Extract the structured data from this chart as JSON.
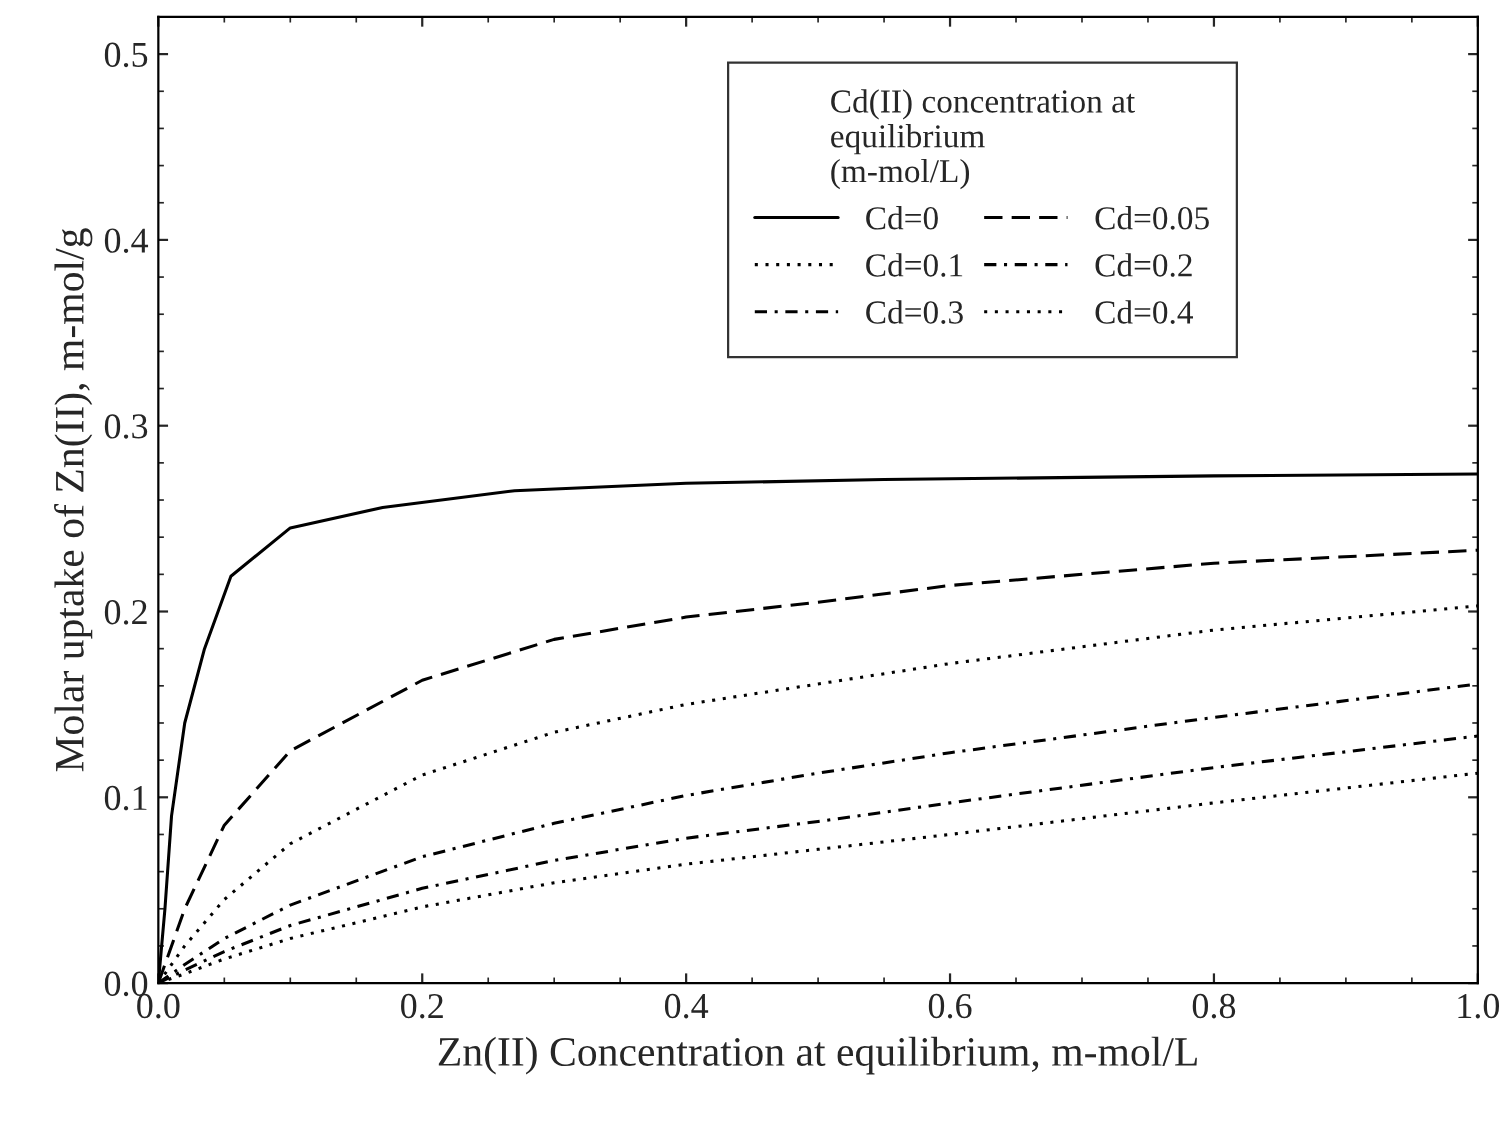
{
  "chart_data": {
    "type": "line",
    "xlabel": "Zn(II) Concentration at equilibrium, m-mol/L",
    "ylabel": "Molar uptake of Zn(II), m-mol/g",
    "legend_title": "Cd(II) concentration at\nequilibrium\n(m-mol/L)",
    "legend": "top right",
    "xlim": [
      0,
      1.0
    ],
    "ylim": [
      0,
      0.52
    ],
    "xticks": [
      {
        "value": 0,
        "label": "0.0"
      },
      {
        "value": 0.2,
        "label": "0.2"
      },
      {
        "value": 0.4,
        "label": "0.4"
      },
      {
        "value": 0.6,
        "label": "0.6"
      },
      {
        "value": 0.8,
        "label": "0.8"
      },
      {
        "value": 1.0,
        "label": "1.0"
      }
    ],
    "yticks": [
      {
        "value": 0,
        "label": "0.0"
      },
      {
        "value": 0.1,
        "label": "0.1"
      },
      {
        "value": 0.2,
        "label": "0.2"
      },
      {
        "value": 0.3,
        "label": "0.3"
      },
      {
        "value": 0.4,
        "label": "0.4"
      },
      {
        "value": 0.5,
        "label": "0.5"
      }
    ],
    "grid": false,
    "series": [
      {
        "name": "Cd=0",
        "color": "#000000",
        "line_style": "solid",
        "x": [
          0,
          0.005,
          0.01,
          0.02,
          0.035,
          0.055,
          0.1,
          0.17,
          0.27,
          0.4,
          0.55,
          0.8,
          1.0
        ],
        "values": [
          0,
          0.04,
          0.09,
          0.14,
          0.18,
          0.219,
          0.245,
          0.256,
          0.265,
          0.269,
          0.271,
          0.273,
          0.274
        ]
      },
      {
        "name": "Cd=0.05",
        "color": "#000000",
        "line_style": "dashed",
        "x": [
          0,
          0.02,
          0.05,
          0.1,
          0.2,
          0.3,
          0.4,
          0.5,
          0.6,
          0.8,
          1.0
        ],
        "values": [
          0,
          0.04,
          0.085,
          0.125,
          0.163,
          0.185,
          0.197,
          0.205,
          0.214,
          0.226,
          0.233
        ]
      },
      {
        "name": "Cd=0.1",
        "color": "#000000",
        "line_style": "dotted",
        "x": [
          0,
          0.02,
          0.05,
          0.1,
          0.2,
          0.3,
          0.4,
          0.5,
          0.6,
          0.8,
          1.0
        ],
        "values": [
          0,
          0.02,
          0.045,
          0.075,
          0.112,
          0.135,
          0.15,
          0.161,
          0.172,
          0.19,
          0.203
        ]
      },
      {
        "name": "Cd=0.2",
        "color": "#000000",
        "line_style": "dashdot",
        "x": [
          0,
          0.02,
          0.05,
          0.1,
          0.2,
          0.3,
          0.4,
          0.5,
          0.6,
          0.8,
          1.0
        ],
        "values": [
          0,
          0.01,
          0.024,
          0.042,
          0.068,
          0.086,
          0.101,
          0.113,
          0.124,
          0.143,
          0.161
        ]
      },
      {
        "name": "Cd=0.3",
        "color": "#000000",
        "line_style": "dashdot",
        "x": [
          0,
          0.02,
          0.05,
          0.1,
          0.2,
          0.3,
          0.4,
          0.5,
          0.6,
          0.8,
          1.0
        ],
        "values": [
          0,
          0.007,
          0.017,
          0.031,
          0.051,
          0.066,
          0.078,
          0.087,
          0.097,
          0.116,
          0.133
        ]
      },
      {
        "name": "Cd=0.4",
        "color": "#000000",
        "line_style": "dotted",
        "x": [
          0,
          0.02,
          0.05,
          0.1,
          0.2,
          0.3,
          0.4,
          0.5,
          0.6,
          0.8,
          1.0
        ],
        "values": [
          0,
          0.005,
          0.013,
          0.024,
          0.041,
          0.054,
          0.064,
          0.072,
          0.08,
          0.097,
          0.113
        ]
      }
    ]
  }
}
